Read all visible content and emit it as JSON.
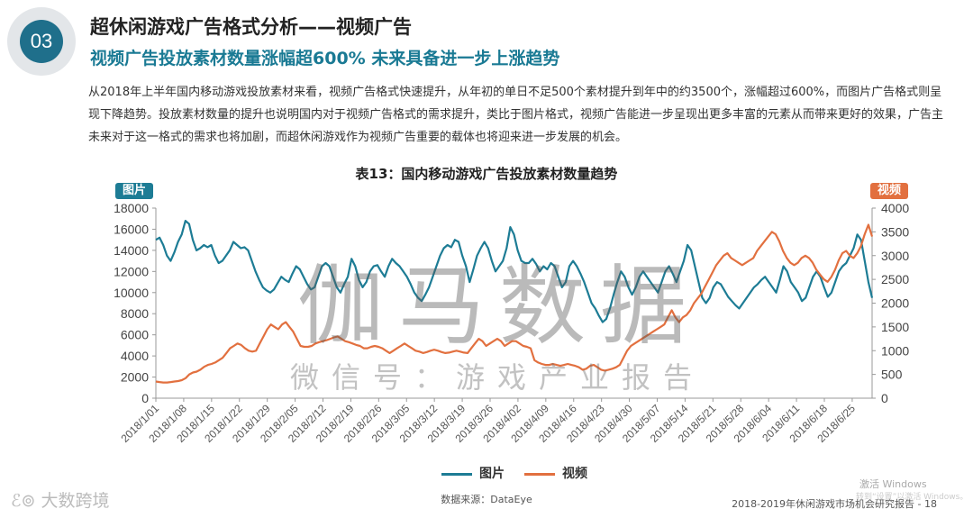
{
  "header": {
    "section_number": "03",
    "title": "超休闲游戏广告格式分析——视频广告",
    "subtitle": "视频广告投放素材数量涨幅超600%  未来具备进一步上涨趋势",
    "paragraph": "从2018年上半年国内移动游戏投放素材来看，视频广告格式快速提升，从年初的单日不足500个素材提升到年中的约3500个，涨幅超过600%，而图片广告格式则呈现下降趋势。投放素材数量的提升也说明国内对于视频广告格式的需求提升，类比于图片格式，视频广告能进一步呈现出更多丰富的元素从而带来更好的效果，广告主未来对于这一格式的需求也将加剧，而超休闲游戏作为视频广告重要的载体也将迎来进一步发展的机会。"
  },
  "watermark": {
    "main": "伽马数据",
    "sub": "微信号：游戏产业报告"
  },
  "chart_data": {
    "type": "line",
    "title": "表13：国内移动游戏广告投放素材数量趋势",
    "left_axis_label": "图片",
    "right_axis_label": "视频",
    "ylim_left": [
      0,
      18000
    ],
    "yticks_left": [
      0,
      2000,
      4000,
      6000,
      8000,
      10000,
      12000,
      14000,
      16000,
      18000
    ],
    "ylim_right": [
      0,
      4000
    ],
    "yticks_right": [
      0,
      500,
      1000,
      1500,
      2000,
      2500,
      3000,
      3500,
      4000
    ],
    "x_start": "2018/1/1",
    "x_end": "2018/6/30",
    "x_tick_labels": [
      "2018/1/01",
      "2018/1/08",
      "2018/1/15",
      "2018/1/22",
      "2018/1/29",
      "2018/2/05",
      "2018/2/12",
      "2018/2/19",
      "2018/2/26",
      "2018/3/05",
      "2018/3/12",
      "2018/3/19",
      "2018/3/26",
      "2018/4/02",
      "2018/4/09",
      "2018/4/16",
      "2018/4/23",
      "2018/4/30",
      "2018/5/07",
      "2018/5/14",
      "2018/5/21",
      "2018/5/28",
      "2018/6/04",
      "2018/6/11",
      "2018/6/18",
      "2018/6/25"
    ],
    "series": [
      {
        "name": "图片",
        "axis": "left",
        "color": "#1d7c95",
        "values": [
          15000,
          15200,
          14500,
          13500,
          13000,
          13800,
          14800,
          15500,
          16800,
          16500,
          15000,
          14000,
          14200,
          14500,
          14300,
          14500,
          13500,
          12800,
          13000,
          13500,
          14000,
          14800,
          14500,
          14200,
          14300,
          14000,
          13000,
          12000,
          11200,
          10500,
          10200,
          10000,
          10300,
          10900,
          11500,
          11200,
          11000,
          11800,
          12500,
          12200,
          11500,
          10800,
          10300,
          10500,
          11500,
          12500,
          12800,
          12500,
          11500,
          10500,
          10000,
          10800,
          11500,
          13200,
          12500,
          11200,
          10500,
          11000,
          12000,
          12500,
          12600,
          12000,
          11500,
          12500,
          13200,
          12800,
          12500,
          12000,
          11500,
          10800,
          10000,
          9500,
          9200,
          9800,
          10500,
          11500,
          12500,
          13500,
          14200,
          14500,
          14300,
          15000,
          14800,
          13500,
          12500,
          11000,
          12200,
          13500,
          14200,
          14800,
          14200,
          13000,
          12000,
          12500,
          13000,
          14200,
          16200,
          15500,
          14000,
          13000,
          12800,
          12800,
          13200,
          12700,
          12000,
          12500,
          12200,
          12800,
          12500,
          11500,
          10500,
          11000,
          12500,
          13000,
          12500,
          11800,
          11000,
          10000,
          9000,
          8500,
          7800,
          7200,
          7500,
          8500,
          9800,
          11000,
          12000,
          11500,
          10500,
          9800,
          10500,
          11500,
          12000,
          11500,
          11000,
          10500,
          10000,
          11000,
          12000,
          12500,
          11800,
          11000,
          12000,
          13000,
          14500,
          14000,
          12500,
          11000,
          9500,
          9000,
          9500,
          10500,
          11000,
          10800,
          10200,
          9600,
          9200,
          8800,
          8500,
          9000,
          9500,
          10000,
          10500,
          10800,
          11200,
          11500,
          11000,
          10500,
          10000,
          11200,
          12500,
          12000,
          11000,
          10500,
          10000,
          9200,
          9500,
          10500,
          11500,
          12000,
          11500,
          10500,
          9600,
          10000,
          11000,
          12000,
          12500,
          12800,
          13500,
          14200,
          15500,
          15000,
          13000,
          11000,
          9500
        ],
        "series_note": ""
      },
      {
        "name": "视频",
        "axis": "right",
        "color": "#e2703f",
        "values": [
          350,
          340,
          330,
          330,
          340,
          350,
          360,
          380,
          420,
          500,
          540,
          560,
          600,
          660,
          700,
          720,
          750,
          800,
          850,
          950,
          1050,
          1100,
          1150,
          1120,
          1050,
          1000,
          980,
          1000,
          1150,
          1300,
          1450,
          1550,
          1500,
          1450,
          1550,
          1600,
          1500,
          1400,
          1250,
          1100,
          1080,
          1080,
          1100,
          1150,
          1180,
          1200,
          1220,
          1250,
          1280,
          1300,
          1250,
          1200,
          1180,
          1150,
          1120,
          1100,
          1050,
          1050,
          1080,
          1100,
          1080,
          1050,
          1000,
          950,
          1000,
          1050,
          1100,
          1150,
          1100,
          1050,
          1000,
          980,
          950,
          970,
          1000,
          1020,
          1000,
          970,
          950,
          960,
          980,
          1000,
          980,
          960,
          950,
          1050,
          1150,
          1250,
          1200,
          1100,
          1150,
          1200,
          1250,
          1200,
          1100,
          1150,
          1200,
          1200,
          1150,
          1100,
          1080,
          1050,
          800,
          750,
          720,
          700,
          700,
          720,
          700,
          680,
          700,
          720,
          700,
          680,
          650,
          600,
          620,
          680,
          700,
          650,
          600,
          580,
          600,
          620,
          650,
          700,
          850,
          1000,
          1100,
          1150,
          1200,
          1250,
          1300,
          1350,
          1400,
          1450,
          1500,
          1550,
          1700,
          1850,
          1700,
          1600,
          1700,
          1750,
          1850,
          2000,
          2100,
          2200,
          2350,
          2500,
          2650,
          2800,
          2900,
          3000,
          3050,
          2950,
          2900,
          2850,
          2800,
          2850,
          2900,
          2950,
          3100,
          3200,
          3300,
          3400,
          3500,
          3450,
          3300,
          3100,
          2950,
          2850,
          2800,
          2850,
          2950,
          3000,
          2950,
          2850,
          2700,
          2600,
          2500,
          2450,
          2550,
          2700,
          2900,
          3050,
          3100,
          3000,
          2950,
          3050,
          3200,
          3450,
          3650,
          3400
        ]
      }
    ]
  },
  "legend": {
    "series1": "图片",
    "series2": "视频"
  },
  "source": "数据来源：DataEye",
  "footer": "2018-2019年休闲游戏市场机会研究报告 - 18",
  "logo_text": "大数跨境",
  "os_watermark": {
    "line1": "激活 Windows",
    "line2": "转到“设置”以激活 Windows。"
  }
}
